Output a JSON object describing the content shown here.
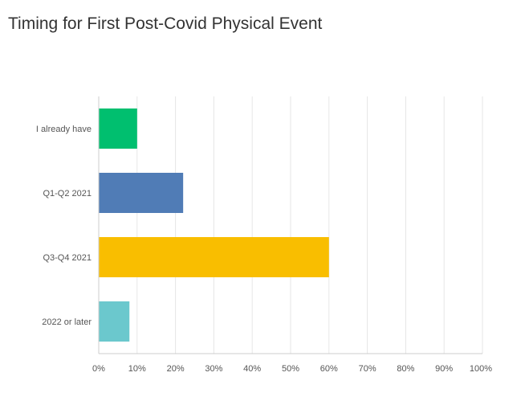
{
  "chart_data": {
    "type": "bar",
    "orientation": "horizontal",
    "title": "Timing for First Post-Covid Physical Event",
    "categories": [
      "I already have",
      "Q1-Q2 2021",
      "Q3-Q4 2021",
      "2022 or later"
    ],
    "values": [
      10,
      22,
      60,
      8
    ],
    "xlim": [
      0,
      100
    ],
    "x_ticks": [
      "0%",
      "10%",
      "20%",
      "30%",
      "40%",
      "50%",
      "60%",
      "70%",
      "80%",
      "90%",
      "100%"
    ],
    "grid": true,
    "colors": [
      "#00bf6f",
      "#507cb6",
      "#f9be00",
      "#6bc8cd"
    ]
  }
}
